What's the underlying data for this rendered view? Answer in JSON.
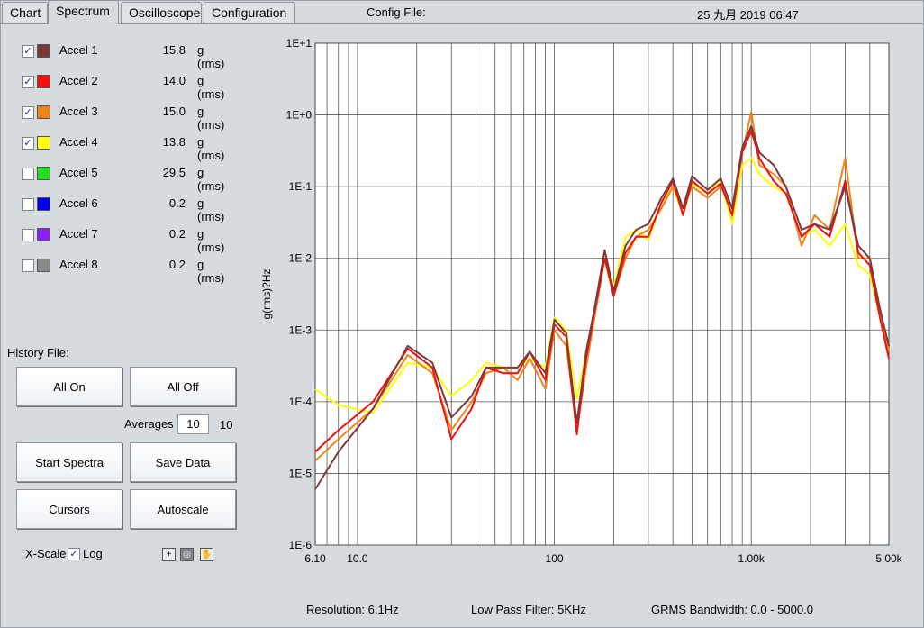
{
  "tabs": [
    {
      "label": "Chart",
      "active": false
    },
    {
      "label": "Spectrum",
      "active": true
    },
    {
      "label": "Oscilloscope",
      "active": false
    },
    {
      "label": "Configuration",
      "active": false
    }
  ],
  "header": {
    "config_file_label": "Config File:",
    "datetime": "25 九月 2019  06:47"
  },
  "channels": [
    {
      "name": "Accel 1",
      "checked": true,
      "color": "#7a3b3b",
      "value": "15.8",
      "unit": "g (rms)"
    },
    {
      "name": "Accel 2",
      "checked": true,
      "color": "#ee1111",
      "value": "14.0",
      "unit": "g (rms)"
    },
    {
      "name": "Accel 3",
      "checked": true,
      "color": "#f08418",
      "value": "15.0",
      "unit": "g (rms)"
    },
    {
      "name": "Accel 4",
      "checked": true,
      "color": "#ffff00",
      "value": "13.8",
      "unit": "g (rms)"
    },
    {
      "name": "Accel 5",
      "checked": false,
      "color": "#22dd22",
      "value": "29.5",
      "unit": "g (rms)"
    },
    {
      "name": "Accel 6",
      "checked": false,
      "color": "#0000ee",
      "value": "0.2",
      "unit": "g (rms)"
    },
    {
      "name": "Accel 7",
      "checked": false,
      "color": "#8a22ee",
      "value": "0.2",
      "unit": "g (rms)"
    },
    {
      "name": "Accel 8",
      "checked": false,
      "color": "#888888",
      "value": "0.2",
      "unit": "g (rms)"
    }
  ],
  "controls": {
    "history_file_label": "History File:",
    "all_on": "All On",
    "all_off": "All Off",
    "averages_label": "Averages",
    "averages_value": "10",
    "averages_count": "10",
    "start_spectra": "Start Spectra",
    "save_data": "Save Data",
    "cursors": "Cursors",
    "autoscale": "Autoscale",
    "xscale_label": "X-Scale",
    "log_label": "Log",
    "log_checked": true,
    "tools": [
      "crosshair-tool-icon",
      "zoom-tool-icon",
      "pan-hand-tool-icon"
    ]
  },
  "footer": {
    "resolution": "Resolution:   6.1Hz",
    "low_pass": "Low Pass Filter:   5KHz",
    "grms_bandwidth": "GRMS Bandwidth:   0.0 - 5000.0"
  },
  "chart_data": {
    "type": "line",
    "xlabel": "",
    "ylabel": "g(rms)?Hz",
    "x_scale": "log",
    "y_scale": "log",
    "xlim": [
      6.1,
      5000
    ],
    "ylim": [
      1e-06,
      10
    ],
    "x_tick_labels": [
      {
        "v": 6.1,
        "label": "6.10"
      },
      {
        "v": 10,
        "label": "10.0"
      },
      {
        "v": 100,
        "label": "100"
      },
      {
        "v": 1000,
        "label": "1.00k"
      },
      {
        "v": 5000,
        "label": "5.00k"
      }
    ],
    "y_tick_labels": [
      {
        "v": 10,
        "label": "1E+1"
      },
      {
        "v": 1,
        "label": "1E+0"
      },
      {
        "v": 0.1,
        "label": "1E-1"
      },
      {
        "v": 0.01,
        "label": "1E-2"
      },
      {
        "v": 0.001,
        "label": "1E-3"
      },
      {
        "v": 0.0001,
        "label": "1E-4"
      },
      {
        "v": 1e-05,
        "label": "1E-5"
      },
      {
        "v": 1e-06,
        "label": "1E-6"
      }
    ],
    "grid": true,
    "background": "#ffffff",
    "series": [
      {
        "name": "Accel 4",
        "color": "#ffff00",
        "x": [
          6.1,
          8,
          12,
          18,
          24,
          30,
          38,
          45,
          55,
          65,
          75,
          90,
          100,
          115,
          130,
          145,
          160,
          180,
          200,
          230,
          260,
          300,
          350,
          400,
          450,
          500,
          600,
          700,
          800,
          900,
          1000,
          1100,
          1300,
          1500,
          1800,
          2100,
          2500,
          3000,
          3500,
          4000,
          4500,
          5000
        ],
        "y": [
          0.00015,
          9e-05,
          7e-05,
          0.00035,
          0.0003,
          0.00012,
          0.0002,
          0.00035,
          0.0003,
          0.0003,
          0.0004,
          0.0003,
          0.0015,
          0.001,
          0.00011,
          0.0005,
          0.0016,
          0.012,
          0.004,
          0.02,
          0.025,
          0.018,
          0.06,
          0.1,
          0.04,
          0.11,
          0.08,
          0.12,
          0.03,
          0.2,
          0.25,
          0.15,
          0.1,
          0.08,
          0.02,
          0.025,
          0.015,
          0.03,
          0.008,
          0.006,
          0.0015,
          0.0005
        ]
      },
      {
        "name": "Accel 3",
        "color": "#f08418",
        "x": [
          6.1,
          8,
          12,
          18,
          24,
          30,
          38,
          45,
          55,
          65,
          75,
          90,
          100,
          115,
          130,
          145,
          160,
          180,
          200,
          230,
          260,
          300,
          350,
          400,
          450,
          500,
          600,
          700,
          800,
          900,
          1000,
          1100,
          1300,
          1500,
          1800,
          2100,
          2500,
          3000,
          3500,
          4000,
          4500,
          5000
        ],
        "y": [
          1.5e-05,
          3e-05,
          8e-05,
          0.00045,
          0.00025,
          4e-05,
          0.0001,
          0.00025,
          0.0003,
          0.0002,
          0.0004,
          0.00015,
          0.001,
          0.0006,
          4e-05,
          0.0003,
          0.0015,
          0.01,
          0.003,
          0.01,
          0.02,
          0.025,
          0.05,
          0.1,
          0.05,
          0.1,
          0.07,
          0.1,
          0.05,
          0.3,
          1.1,
          0.2,
          0.15,
          0.1,
          0.015,
          0.04,
          0.025,
          0.25,
          0.01,
          0.01,
          0.002,
          0.0005
        ]
      },
      {
        "name": "Accel 2",
        "color": "#ee1111",
        "x": [
          6.1,
          8,
          12,
          18,
          24,
          30,
          38,
          45,
          55,
          65,
          75,
          90,
          100,
          115,
          130,
          145,
          160,
          180,
          200,
          230,
          260,
          300,
          350,
          400,
          450,
          500,
          600,
          700,
          800,
          900,
          1000,
          1100,
          1300,
          1500,
          1800,
          2100,
          2500,
          3000,
          3500,
          4000,
          4500,
          5000
        ],
        "y": [
          2e-05,
          4e-05,
          0.0001,
          0.00055,
          0.0003,
          3e-05,
          8e-05,
          0.0003,
          0.00025,
          0.00025,
          0.0005,
          0.0002,
          0.0012,
          0.0008,
          3.5e-05,
          0.0004,
          0.0018,
          0.01,
          0.003,
          0.012,
          0.02,
          0.02,
          0.06,
          0.12,
          0.04,
          0.12,
          0.08,
          0.11,
          0.04,
          0.3,
          0.6,
          0.25,
          0.12,
          0.08,
          0.02,
          0.03,
          0.02,
          0.12,
          0.012,
          0.008,
          0.0015,
          0.0004
        ]
      },
      {
        "name": "Accel 1",
        "color": "#7a3b3b",
        "x": [
          6.1,
          8,
          12,
          18,
          24,
          30,
          38,
          45,
          55,
          65,
          75,
          90,
          100,
          115,
          130,
          145,
          160,
          180,
          200,
          230,
          260,
          300,
          350,
          400,
          450,
          500,
          600,
          700,
          800,
          900,
          1000,
          1100,
          1300,
          1500,
          1800,
          2100,
          2500,
          3000,
          3500,
          4000,
          4500,
          5000
        ],
        "y": [
          6e-06,
          2e-05,
          8e-05,
          0.0006,
          0.00035,
          6e-05,
          0.00012,
          0.0003,
          0.0003,
          0.0003,
          0.0005,
          0.00025,
          0.0014,
          0.0009,
          5e-05,
          0.0005,
          0.002,
          0.013,
          0.0035,
          0.015,
          0.025,
          0.03,
          0.07,
          0.13,
          0.05,
          0.14,
          0.09,
          0.13,
          0.05,
          0.35,
          0.7,
          0.3,
          0.2,
          0.1,
          0.025,
          0.03,
          0.025,
          0.1,
          0.015,
          0.01,
          0.002,
          0.0006
        ]
      }
    ]
  }
}
